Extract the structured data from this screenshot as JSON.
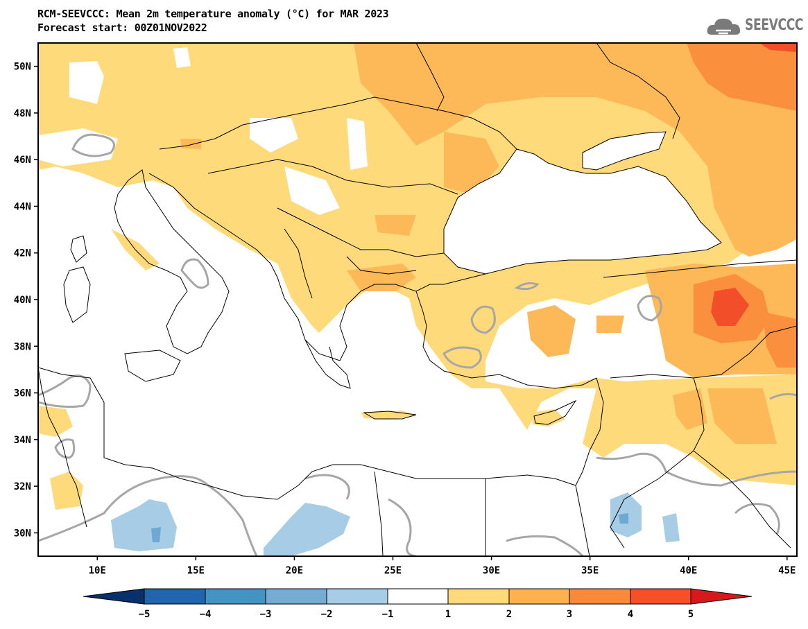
{
  "title": {
    "line1": "RCM-SEEVCCC: Mean 2m temperature anomaly (°C) for MAR 2023",
    "line2": "Forecast start: 00Z01NOV2022"
  },
  "logo": {
    "text": "SEEVCCC",
    "icon": "cloud-icon"
  },
  "map": {
    "lat_labels": [
      "50N",
      "48N",
      "46N",
      "44N",
      "42N",
      "40N",
      "38N",
      "36N",
      "34N",
      "32N",
      "30N"
    ],
    "lon_labels": [
      "10E",
      "15E",
      "20E",
      "25E",
      "30E",
      "35E",
      "40E",
      "45E"
    ],
    "extent": {
      "lon_min": 7,
      "lon_max": 45.5,
      "lat_min": 29,
      "lat_max": 51
    }
  },
  "colorbar": {
    "labels": [
      "−5",
      "−4",
      "−3",
      "−2",
      "−1",
      "1",
      "2",
      "3",
      "4",
      "5"
    ],
    "colors": [
      "#08306b",
      "#2166ac",
      "#4393c3",
      "#74add1",
      "#a6cde5",
      "#ffffff",
      "#ffda7a",
      "#fdb14f",
      "#f98a3c",
      "#f5502a",
      "#d7191c"
    ]
  },
  "palette": {
    "anom_1_2": "#ffda7a",
    "anom_2_3": "#fdb857",
    "anom_3_4": "#fa8f3e",
    "anom_4_5": "#f24e2a",
    "anom_gt5": "#d7191c",
    "anom_m1_m2": "#a6cde5",
    "anom_m2_m3": "#6ea8d3",
    "contour": "#a6a6a6",
    "border": "#000000"
  }
}
